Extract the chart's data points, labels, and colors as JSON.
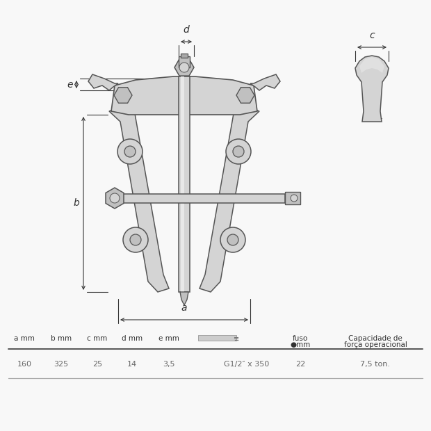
{
  "bg_color": "#f8f8f8",
  "line_color": "#888888",
  "edge_color": "#555555",
  "fill_light": "#d4d4d4",
  "fill_mid": "#c0c0c0",
  "fill_dark": "#a8a8a8",
  "text_color": "#444444",
  "dim_color": "#333333",
  "table_headers": [
    "a mm",
    "b mm",
    "c mm",
    "d mm",
    "e mm",
    "fuso●mm",
    "Capacidade de\nforça operacional"
  ],
  "table_values": [
    "160",
    "325",
    "25",
    "14",
    "3,5",
    "G1/2″ x 350",
    "22",
    "7,5 ton."
  ],
  "screw_label": "G1/2″ x 350",
  "fuso_val": "22",
  "cap_val": "7,5 ton."
}
